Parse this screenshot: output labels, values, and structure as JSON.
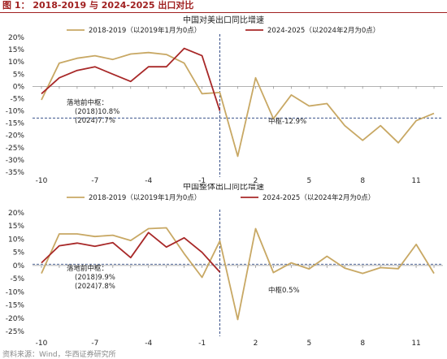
{
  "figure_title": "图 1： 2018-2019 与 2024-2025 出口对比",
  "source": "资料来源：Wind，华西证券研究所",
  "colors": {
    "series_2018": "#c8a864",
    "series_2024": "#a82828",
    "marker": "#1f3a7a",
    "grid": "#bbbbbb"
  },
  "chart_data": [
    {
      "type": "line",
      "title": "中国对美出口同比增速",
      "x_ticks": [
        -10,
        -7,
        -4,
        -1,
        2,
        5,
        8,
        11
      ],
      "xlim": [
        -10.5,
        12.5
      ],
      "ylim": [
        -35,
        20
      ],
      "y_ticks": [
        20,
        15,
        10,
        5,
        0,
        -5,
        -10,
        -15,
        -20,
        -25,
        -30,
        -35
      ],
      "y_tick_labels": [
        "20%",
        "15%",
        "10%",
        "5%",
        "0%",
        "-5%",
        "-10%",
        "-15%",
        "-20%",
        "-25%",
        "-30%",
        "-35%"
      ],
      "series": [
        {
          "name": "2018-2019（以2019年1月为0点）",
          "x": [
            -10,
            -9,
            -8,
            -7,
            -6,
            -5,
            -4,
            -3,
            -2,
            -1,
            0,
            1,
            2,
            3,
            4,
            5,
            6,
            7,
            8,
            9,
            10,
            11,
            12
          ],
          "y": [
            -5.5,
            9.5,
            11.5,
            12.5,
            11,
            13.2,
            13.8,
            13,
            9.5,
            -3,
            -2.5,
            -28.5,
            3.5,
            -13.2,
            -3.5,
            -8,
            -7,
            -16,
            -22,
            -16,
            -23,
            -14,
            -11
          ]
        },
        {
          "name": "2024-2025（以2024年2月为0点）",
          "x": [
            -10,
            -9,
            -8,
            -7,
            -6,
            -5,
            -4,
            -3,
            -2,
            -1,
            0
          ],
          "y": [
            -3,
            3.5,
            6.5,
            8,
            5,
            2,
            8,
            8,
            15.5,
            12.5,
            -10
          ]
        }
      ],
      "reference_line": {
        "x": 0
      },
      "hline": {
        "y": -12.9
      },
      "annotations": [
        {
          "lines": [
            "落地前中枢：",
            "(2018)10.8%",
            "(2024)7.7%"
          ]
        },
        {
          "lines": [
            "中枢-12.9%"
          ]
        }
      ]
    },
    {
      "type": "line",
      "title": "中国整体出口同比增速",
      "x_ticks": [
        -10,
        -7,
        -4,
        -1,
        2,
        5,
        8,
        11
      ],
      "xlim": [
        -10.5,
        12.5
      ],
      "ylim": [
        -25,
        20
      ],
      "y_ticks": [
        20,
        15,
        10,
        5,
        0,
        -5,
        -10,
        -15,
        -20,
        -25
      ],
      "y_tick_labels": [
        "20%",
        "15%",
        "10%",
        "5%",
        "0%",
        "-5%",
        "-10%",
        "-15%",
        "-20%",
        "-25%"
      ],
      "series": [
        {
          "name": "2018-2019（以2019年1月为0点）",
          "x": [
            -10,
            -9,
            -8,
            -7,
            -6,
            -5,
            -4,
            -3,
            -2,
            -1,
            0,
            1,
            2,
            3,
            4,
            5,
            6,
            7,
            8,
            9,
            10,
            11,
            12
          ],
          "y": [
            -3,
            12,
            12,
            11,
            11.5,
            9.5,
            14,
            14.3,
            4.5,
            -4.5,
            9.3,
            -20.5,
            14,
            -2.7,
            1,
            -1.3,
            3.5,
            -1,
            -3,
            -0.8,
            -1.2,
            8,
            -3
          ]
        },
        {
          "name": "2024-2025（以2024年2月为0点）",
          "x": [
            -10,
            -9,
            -8,
            -7,
            -6,
            -5,
            -4,
            -3,
            -2,
            -1,
            0
          ],
          "y": [
            1,
            7.5,
            8.5,
            7.3,
            8.7,
            3,
            12.5,
            7,
            10.5,
            5,
            -2.5
          ]
        }
      ],
      "reference_line": {
        "x": 0
      },
      "hline": {
        "y": 0.5
      },
      "annotations": [
        {
          "lines": [
            "落地前中枢：",
            "(2018)9.9%",
            "(2024)7.8%"
          ]
        },
        {
          "lines": [
            "中枢0.5%"
          ]
        }
      ]
    }
  ]
}
